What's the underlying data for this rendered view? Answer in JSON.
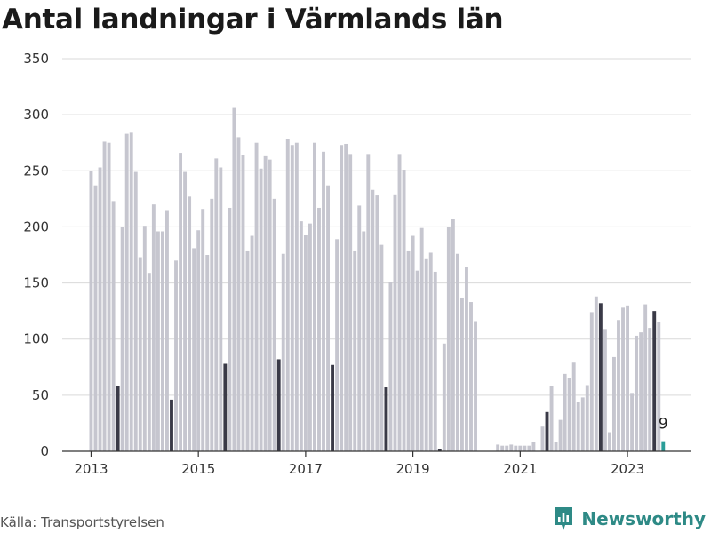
{
  "chart_data": {
    "type": "bar",
    "title": "Antal landningar i Värmlands län",
    "xlabel": "",
    "ylabel": "",
    "start": "2013-01",
    "ylim": [
      0,
      350
    ],
    "yticks": [
      0,
      50,
      100,
      150,
      200,
      250,
      300,
      350
    ],
    "xticks": [
      "2013",
      "2015",
      "2017",
      "2019",
      "2021",
      "2023"
    ],
    "grid": true,
    "legend": "none",
    "colors": {
      "default": "#c6c6cf",
      "july": "#3a3a47",
      "latest": "#2a9d98",
      "grid": "#d9d9d9",
      "axis": "#333333"
    },
    "annotation": {
      "label": "9"
    },
    "values": [
      250,
      237,
      253,
      276,
      275,
      223,
      58,
      200,
      283,
      284,
      249,
      173,
      201,
      159,
      220,
      196,
      196,
      215,
      46,
      170,
      266,
      249,
      227,
      181,
      197,
      216,
      175,
      225,
      261,
      253,
      78,
      217,
      306,
      280,
      264,
      179,
      192,
      275,
      252,
      263,
      260,
      225,
      82,
      176,
      278,
      273,
      275,
      205,
      193,
      203,
      275,
      217,
      267,
      237,
      77,
      189,
      273,
      274,
      265,
      179,
      219,
      196,
      265,
      233,
      228,
      184,
      57,
      151,
      229,
      265,
      251,
      179,
      192,
      161,
      199,
      172,
      177,
      160,
      2,
      96,
      200,
      207,
      176,
      137,
      164,
      133,
      116,
      0,
      0,
      0,
      0,
      6,
      5,
      5,
      6,
      5,
      5,
      5,
      5,
      8,
      0,
      22,
      35,
      58,
      8,
      28,
      69,
      65,
      79,
      44,
      48,
      59,
      124,
      138,
      132,
      109,
      17,
      84,
      117,
      128,
      130,
      52,
      103,
      106,
      131,
      110,
      125,
      115,
      9
    ]
  },
  "source": {
    "label": "Källa: Transportstyrelsen"
  },
  "brand": {
    "name": "Newsworthy",
    "logo_icon": "chart-logo-icon"
  }
}
